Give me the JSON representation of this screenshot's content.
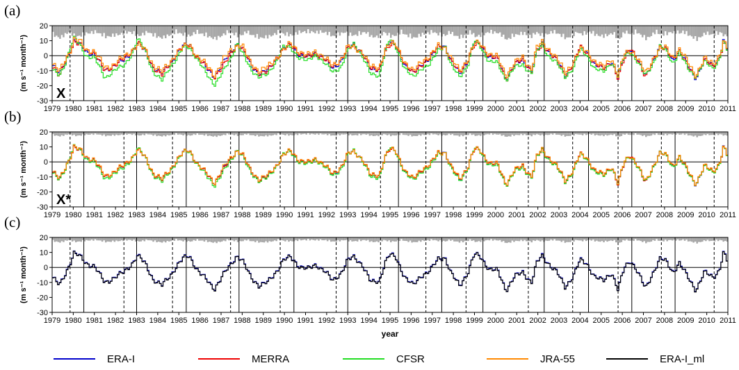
{
  "chart_data": {
    "type": "line",
    "x_unit": "year",
    "xlim": [
      1979,
      2011
    ],
    "ylim": [
      -30,
      20
    ],
    "y_ticks": [
      20,
      10,
      0,
      -10,
      -20,
      -30
    ],
    "x_ticks": [
      "1979",
      "1980",
      "1981",
      "1982",
      "1983",
      "1984",
      "1985",
      "1986",
      "1987",
      "1988",
      "1989",
      "1990",
      "1991",
      "1992",
      "1993",
      "1994",
      "1995",
      "1996",
      "1997",
      "1998",
      "1999",
      "2000",
      "2001",
      "2002",
      "2003",
      "2004",
      "2005",
      "2006",
      "2007",
      "2008",
      "2009",
      "2010",
      "2011"
    ],
    "ylabel": "(m s⁻¹ month⁻¹)",
    "xlabel": "year",
    "shaded_bars": "gray bars hanging from top of each panel showing inter-reanalysis spread",
    "solid_vlines": [
      1980.5,
      1983.0,
      1985.35,
      1987.85,
      1990.45,
      1993.0,
      1995.4,
      1997.45,
      1999.4,
      2002.3,
      2004.4,
      2006.45,
      2008.5,
      2011.0
    ],
    "dashed_vlines": [
      1979.85,
      1982.4,
      1984.7,
      1987.45,
      1989.8,
      1992.45,
      1994.55,
      1996.7,
      1998.6,
      2001.55,
      2003.65,
      2005.8,
      2007.85,
      2010.35
    ],
    "ref_anchors": {
      "x": [
        1979.0,
        1979.35,
        1979.6,
        1979.85,
        1980.05,
        1980.35,
        1980.6,
        1981.0,
        1981.5,
        1981.9,
        1982.4,
        1982.8,
        1983.05,
        1983.4,
        1983.8,
        1984.2,
        1984.6,
        1984.9,
        1985.2,
        1985.5,
        1985.9,
        1986.3,
        1986.7,
        1987.1,
        1987.5,
        1987.75,
        1988.0,
        1988.4,
        1988.8,
        1989.2,
        1989.6,
        1989.95,
        1990.3,
        1990.7,
        1991.1,
        1991.5,
        1991.9,
        1992.3,
        1992.7,
        1993.0,
        1993.3,
        1993.7,
        1994.1,
        1994.5,
        1994.75,
        1995.0,
        1995.3,
        1995.7,
        1996.1,
        1996.5,
        1996.9,
        1997.3,
        1997.6,
        1997.9,
        1998.3,
        1998.7,
        1999.0,
        1999.3,
        1999.7,
        2000.1,
        2000.5,
        2000.9,
        2001.3,
        2001.7,
        2001.95,
        2002.2,
        2002.5,
        2002.9,
        2003.3,
        2003.7,
        2004.0,
        2004.3,
        2004.7,
        2005.1,
        2005.5,
        2005.8,
        2006.1,
        2006.4,
        2006.7,
        2007.1,
        2007.5,
        2007.8,
        2008.1,
        2008.4,
        2008.7,
        2009.1,
        2009.5,
        2009.9,
        2010.3,
        2010.6,
        2010.8,
        2011.0
      ],
      "y": [
        -6,
        -12,
        -5,
        3,
        10,
        7,
        3,
        1,
        -10,
        -7,
        -3,
        3,
        8,
        3,
        -8,
        -12,
        -5,
        1,
        6,
        8,
        -2,
        -8,
        -14,
        -5,
        3,
        8,
        5,
        -6,
        -12,
        -10,
        -3,
        5,
        7,
        1,
        -1,
        2,
        -2,
        -9,
        -3,
        5,
        7,
        2,
        -10,
        -9,
        3,
        9,
        6,
        -6,
        -12,
        -5,
        -2,
        6,
        7,
        -4,
        -12,
        -3,
        9,
        7,
        -1,
        -2,
        -15,
        -6,
        -3,
        -10,
        3,
        8,
        3,
        -3,
        -13,
        -5,
        5,
        3,
        -6,
        -9,
        -3,
        -15,
        0,
        5,
        -2,
        -14,
        -2,
        6,
        4,
        -3,
        3,
        -6,
        -15,
        -3,
        -6,
        -2,
        10,
        3
      ],
      "dy": {
        "MERRA": [
          -1,
          -2,
          1,
          0,
          -1,
          0,
          1,
          1,
          0,
          0,
          1,
          0,
          1,
          1,
          0,
          -1,
          0,
          1,
          0,
          -1,
          0,
          1,
          0,
          -2,
          -1,
          -1,
          0,
          1,
          0,
          -1,
          1,
          -1,
          0,
          1,
          0,
          -1,
          0,
          1,
          1,
          0,
          -1,
          0,
          1,
          0,
          -1,
          -2,
          0,
          1,
          0,
          -1,
          1,
          0,
          -1,
          0,
          1,
          0,
          -2,
          0,
          1,
          0,
          -1,
          0,
          1,
          -1,
          0,
          -2,
          1,
          0,
          -1,
          0,
          1,
          -1,
          1,
          0,
          -1,
          0,
          -2,
          1,
          0,
          -1,
          1,
          -1,
          0,
          1,
          0,
          -1,
          1,
          0,
          -1,
          0,
          -2,
          1
        ],
        "CFSR": [
          -3,
          -2,
          -1,
          2,
          2,
          -1,
          -3,
          -2,
          -5,
          -3,
          -4,
          -1,
          3,
          1,
          -3,
          -5,
          -2,
          -3,
          -1,
          -2,
          -1,
          -4,
          -5,
          -6,
          -4,
          1,
          -3,
          -3,
          -2,
          -3,
          -1,
          1,
          -2,
          -2,
          -3,
          -1,
          -3,
          -2,
          -4,
          -2,
          1,
          -2,
          -3,
          -4,
          -1,
          2,
          -1,
          -2,
          -3,
          -3,
          -4,
          -2,
          0,
          -3,
          -2,
          -3,
          1,
          -1,
          -3,
          -3,
          -1,
          -2,
          -3,
          -2,
          -1,
          0,
          -3,
          -2,
          -1,
          -3,
          -1,
          -2,
          -3,
          -2,
          -1,
          1,
          0,
          -2,
          -2,
          1,
          -2,
          0,
          -1,
          -2,
          -1,
          -2,
          1,
          -1,
          -2,
          -1,
          -1,
          -1
        ],
        "JRA-55": [
          1,
          1,
          2,
          0,
          1,
          2,
          1,
          2,
          2,
          1,
          2,
          1,
          -1,
          1,
          2,
          1,
          1,
          1,
          -1,
          0,
          1,
          2,
          1,
          2,
          1,
          -1,
          2,
          1,
          2,
          2,
          1,
          -1,
          1,
          2,
          1,
          1,
          1,
          2,
          1,
          1,
          -2,
          1,
          2,
          1,
          1,
          -1,
          1,
          2,
          1,
          2,
          1,
          1,
          -1,
          2,
          2,
          1,
          -1,
          1,
          2,
          1,
          2,
          1,
          2,
          1,
          2,
          1,
          2,
          1,
          2,
          1,
          -1,
          1,
          2,
          1,
          2,
          1,
          1,
          -1,
          1,
          2,
          1,
          -1,
          1,
          2,
          1,
          2,
          2,
          1,
          1,
          2,
          -1,
          1
        ]
      }
    },
    "series": [
      {
        "name": "ERA-I",
        "color": "#0000cc"
      },
      {
        "name": "MERRA",
        "color": "#ee0000"
      },
      {
        "name": "CFSR",
        "color": "#22dd22"
      },
      {
        "name": "JRA-55",
        "color": "#ff8800"
      },
      {
        "name": "ERA-I_ml",
        "color": "#000000"
      }
    ],
    "panels": [
      {
        "letter": "(a)",
        "term": "X",
        "series": [
          "ERA-I",
          "MERRA",
          "CFSR",
          "JRA-55"
        ],
        "spread_scale": 1.0,
        "series_scale": 1.0
      },
      {
        "letter": "(b)",
        "term": "X*",
        "series": [
          "ERA-I",
          "MERRA",
          "CFSR",
          "JRA-55"
        ],
        "spread_scale": 0.35,
        "series_scale": 0.3
      },
      {
        "letter": "(c)",
        "term": "",
        "series": [
          "ERA-I",
          "ERA-I_ml"
        ],
        "spread_scale": 0.4,
        "series_scale": 0.35
      }
    ]
  }
}
